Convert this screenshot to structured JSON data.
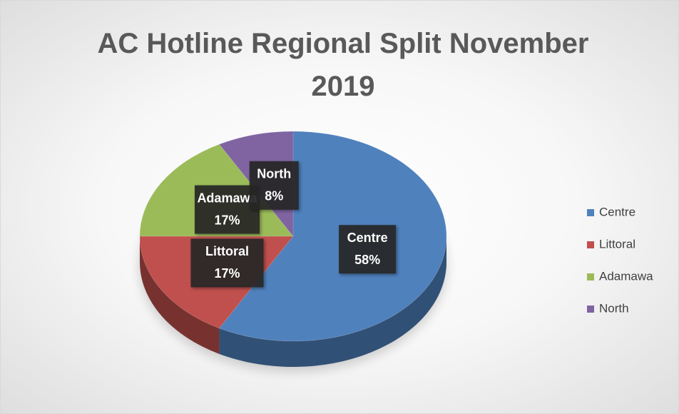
{
  "chart_data": {
    "type": "pie",
    "title": "AC Hotline Regional Split November 2019",
    "categories": [
      "Centre",
      "Littoral",
      "Adamawa",
      "North"
    ],
    "values": [
      58,
      17,
      17,
      8
    ],
    "value_labels": [
      "58%",
      "17%",
      "17%",
      "8%"
    ],
    "colors": [
      "#4f81bd",
      "#c0504d",
      "#9bbb59",
      "#8064a2"
    ],
    "legend": "right"
  }
}
